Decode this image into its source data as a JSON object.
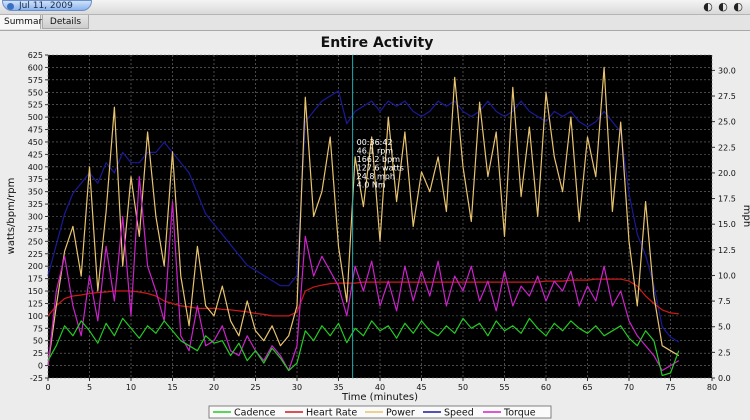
{
  "toolbar": {
    "date_label": "Jul 11, 2009",
    "window_controls": "◐ ◐ ◐"
  },
  "tabs": [
    {
      "label": "Summary",
      "active": true
    },
    {
      "label": "Details",
      "active": false
    }
  ],
  "colors": {
    "cadence": "#22cc22",
    "heart_rate": "#cc1a1a",
    "power": "#e8c46e",
    "speed": "#1a1a99",
    "torque": "#cc22cc",
    "cursor": "#22aaaa"
  },
  "chart_data": {
    "type": "line",
    "title": "Entire Activity",
    "xlabel": "Time (minutes)",
    "ylabel": "watts/bpm/rpm",
    "ylabel_right": "mph",
    "xlim": [
      0,
      80
    ],
    "ylim": [
      -25,
      625
    ],
    "ylim_right": [
      0,
      31.5
    ],
    "xticks": [
      0,
      5,
      10,
      15,
      20,
      25,
      30,
      35,
      40,
      45,
      50,
      55,
      60,
      65,
      70,
      75,
      80
    ],
    "yticks": [
      -25,
      0,
      25,
      50,
      75,
      100,
      125,
      150,
      175,
      200,
      225,
      250,
      275,
      300,
      325,
      350,
      375,
      400,
      425,
      450,
      475,
      500,
      525,
      550,
      575,
      600,
      625
    ],
    "yticks_right": [
      0.0,
      2.5,
      5.0,
      7.5,
      10.0,
      12.5,
      15.0,
      17.5,
      20.0,
      22.5,
      25.0,
      27.5,
      30.0
    ],
    "grid": true,
    "legend_position": "bottom",
    "cursor": {
      "x": 36.7,
      "readout": [
        "00:36:42",
        "46.1 rpm",
        "166.2 bpm",
        "127.6 watts",
        "24.8 mph",
        "4.0 Nm"
      ]
    },
    "series": [
      {
        "name": "Cadence",
        "axis": "left",
        "x": [
          0,
          1,
          2,
          3,
          4,
          5,
          6,
          7,
          8,
          9,
          10,
          11,
          12,
          13,
          14,
          15,
          16,
          17,
          18,
          19,
          20,
          21,
          22,
          23,
          24,
          25,
          26,
          27,
          28,
          29,
          30,
          31,
          32,
          33,
          34,
          35,
          36,
          37,
          38,
          39,
          40,
          41,
          42,
          43,
          44,
          45,
          46,
          47,
          48,
          49,
          50,
          51,
          52,
          53,
          54,
          55,
          56,
          57,
          58,
          59,
          60,
          61,
          62,
          63,
          64,
          65,
          66,
          67,
          68,
          69,
          70,
          71,
          72,
          73,
          74,
          75,
          76
        ],
        "values": [
          10,
          40,
          80,
          60,
          90,
          70,
          45,
          85,
          60,
          95,
          75,
          55,
          80,
          65,
          90,
          70,
          50,
          40,
          30,
          60,
          45,
          50,
          20,
          45,
          10,
          30,
          5,
          35,
          15,
          -10,
          5,
          70,
          50,
          80,
          60,
          85,
          46,
          75,
          60,
          90,
          70,
          80,
          55,
          85,
          65,
          90,
          70,
          60,
          80,
          65,
          95,
          75,
          85,
          60,
          90,
          70,
          80,
          65,
          95,
          75,
          60,
          85,
          70,
          90,
          75,
          65,
          80,
          60,
          70,
          80,
          55,
          40,
          70,
          50,
          -20,
          -15,
          30
        ]
      },
      {
        "name": "Heart Rate",
        "axis": "left",
        "x": [
          0,
          1,
          2,
          3,
          4,
          5,
          6,
          7,
          8,
          9,
          10,
          11,
          12,
          13,
          14,
          15,
          16,
          17,
          18,
          19,
          20,
          21,
          22,
          23,
          24,
          25,
          26,
          27,
          28,
          29,
          30,
          31,
          32,
          33,
          34,
          35,
          36,
          37,
          38,
          39,
          40,
          41,
          42,
          43,
          44,
          45,
          46,
          47,
          48,
          49,
          50,
          51,
          52,
          53,
          54,
          55,
          56,
          57,
          58,
          59,
          60,
          61,
          62,
          63,
          64,
          65,
          66,
          67,
          68,
          69,
          70,
          71,
          72,
          73,
          74,
          75,
          76
        ],
        "values": [
          100,
          120,
          135,
          140,
          142,
          145,
          147,
          148,
          150,
          150,
          150,
          148,
          145,
          140,
          130,
          125,
          120,
          118,
          115,
          115,
          115,
          113,
          112,
          110,
          108,
          105,
          103,
          100,
          100,
          100,
          108,
          150,
          158,
          162,
          165,
          166,
          166,
          166,
          168,
          168,
          168,
          168,
          168,
          168,
          168,
          168,
          168,
          168,
          168,
          168,
          168,
          168,
          168,
          168,
          168,
          168,
          168,
          168,
          168,
          168,
          170,
          170,
          170,
          172,
          172,
          172,
          174,
          174,
          174,
          174,
          170,
          160,
          140,
          125,
          112,
          106,
          104
        ]
      },
      {
        "name": "Power",
        "axis": "left",
        "x": [
          0,
          1,
          2,
          3,
          4,
          5,
          6,
          7,
          8,
          9,
          10,
          11,
          12,
          13,
          14,
          15,
          16,
          17,
          18,
          19,
          20,
          21,
          22,
          23,
          24,
          25,
          26,
          27,
          28,
          29,
          30,
          31,
          32,
          33,
          34,
          35,
          36,
          37,
          38,
          39,
          40,
          41,
          42,
          43,
          44,
          45,
          46,
          47,
          48,
          49,
          50,
          51,
          52,
          53,
          54,
          55,
          56,
          57,
          58,
          59,
          60,
          61,
          62,
          63,
          64,
          65,
          66,
          67,
          68,
          69,
          70,
          71,
          72,
          73,
          74,
          75,
          76
        ],
        "values": [
          0,
          120,
          230,
          280,
          180,
          400,
          150,
          310,
          520,
          200,
          380,
          260,
          470,
          300,
          200,
          430,
          180,
          80,
          240,
          120,
          100,
          160,
          90,
          60,
          130,
          70,
          50,
          80,
          40,
          60,
          120,
          540,
          300,
          350,
          460,
          240,
          128,
          420,
          320,
          460,
          250,
          500,
          330,
          470,
          280,
          390,
          350,
          420,
          310,
          580,
          400,
          290,
          530,
          380,
          470,
          260,
          560,
          340,
          480,
          300,
          550,
          420,
          350,
          500,
          290,
          460,
          380,
          600,
          310,
          490,
          250,
          120,
          330,
          140,
          40,
          30,
          20
        ]
      },
      {
        "name": "Speed",
        "axis": "right",
        "x": [
          0,
          1,
          2,
          3,
          4,
          5,
          6,
          7,
          8,
          9,
          10,
          11,
          12,
          13,
          14,
          15,
          16,
          17,
          18,
          19,
          20,
          21,
          22,
          23,
          24,
          25,
          26,
          27,
          28,
          29,
          30,
          31,
          32,
          33,
          34,
          35,
          36,
          37,
          38,
          39,
          40,
          41,
          42,
          43,
          44,
          45,
          46,
          47,
          48,
          49,
          50,
          51,
          52,
          53,
          54,
          55,
          56,
          57,
          58,
          59,
          60,
          61,
          62,
          63,
          64,
          65,
          66,
          67,
          68,
          69,
          70,
          71,
          72,
          73,
          74,
          75,
          76
        ],
        "values": [
          10,
          13,
          16,
          18,
          19,
          20,
          19,
          21,
          20,
          22,
          21,
          21,
          22,
          22,
          23,
          22,
          21,
          20,
          18,
          16,
          15,
          14,
          13,
          12,
          11,
          10.5,
          10,
          9.5,
          9,
          9,
          10,
          25,
          26,
          27,
          27.5,
          28,
          24.8,
          26,
          26.5,
          27,
          26,
          27,
          26.5,
          27,
          26,
          25.5,
          26,
          27,
          26.5,
          27,
          26,
          25.5,
          26,
          27,
          26,
          25.5,
          26,
          27,
          26,
          25.5,
          25,
          26,
          25.5,
          26,
          25,
          24.5,
          25,
          26,
          25,
          24,
          18,
          14,
          12,
          9,
          5,
          4,
          3.5
        ]
      },
      {
        "name": "Torque",
        "axis": "left",
        "x": [
          0,
          1,
          2,
          3,
          4,
          5,
          6,
          7,
          8,
          9,
          10,
          11,
          12,
          13,
          14,
          15,
          16,
          17,
          18,
          19,
          20,
          21,
          22,
          23,
          24,
          25,
          26,
          27,
          28,
          29,
          30,
          31,
          32,
          33,
          34,
          35,
          36,
          37,
          38,
          39,
          40,
          41,
          42,
          43,
          44,
          45,
          46,
          47,
          48,
          49,
          50,
          51,
          52,
          53,
          54,
          55,
          56,
          57,
          58,
          59,
          60,
          61,
          62,
          63,
          64,
          65,
          66,
          67,
          68,
          69,
          70,
          71,
          72,
          73,
          74,
          75,
          76
        ],
        "values": [
          0,
          150,
          220,
          120,
          60,
          180,
          90,
          240,
          130,
          300,
          100,
          380,
          200,
          150,
          90,
          330,
          60,
          30,
          120,
          40,
          50,
          80,
          30,
          20,
          60,
          30,
          10,
          40,
          20,
          -10,
          40,
          260,
          180,
          220,
          190,
          160,
          100,
          200,
          150,
          210,
          120,
          170,
          110,
          200,
          130,
          190,
          140,
          210,
          120,
          180,
          150,
          200,
          130,
          170,
          110,
          190,
          120,
          160,
          140,
          180,
          130,
          170,
          150,
          190,
          120,
          160,
          130,
          200,
          120,
          150,
          90,
          60,
          40,
          20,
          -10,
          0,
          10
        ]
      }
    ]
  }
}
